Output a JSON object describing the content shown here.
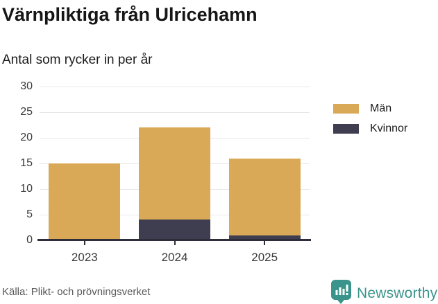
{
  "header": {
    "title": "Värnpliktiga från Ulricehamn",
    "subtitle": "Antal som rycker in per år"
  },
  "chart_data": {
    "type": "bar",
    "stacked": true,
    "title": "Värnpliktiga från Ulricehamn",
    "subtitle": "Antal som rycker in per år",
    "categories": [
      "2023",
      "2024",
      "2025"
    ],
    "series": [
      {
        "name": "Män",
        "color": "#d9a957",
        "values": [
          15,
          18,
          15
        ]
      },
      {
        "name": "Kvinnor",
        "color": "#3f3e51",
        "values": [
          0,
          4,
          1
        ]
      }
    ],
    "stack_order_bottom_to_top": [
      "Kvinnor",
      "Män"
    ],
    "totals": [
      15,
      22,
      16
    ],
    "xlabel": "",
    "ylabel": "",
    "ylim": [
      0,
      30
    ],
    "yticks": [
      0,
      5,
      10,
      15,
      20,
      25,
      30
    ],
    "grid": "horizontal",
    "legend_position": "right"
  },
  "legend": {
    "items": [
      {
        "label": "Män",
        "color": "#d9a957"
      },
      {
        "label": "Kvinnor",
        "color": "#3f3e51"
      }
    ]
  },
  "footer": {
    "source": "Källa: Plikt- och prövningsverket",
    "brand": "Newsworthy",
    "brand_color": "#3a948b",
    "brand_icon": "newsworthy-pin-barchart-icon"
  },
  "colors": {
    "grid": "#e7e7e7",
    "axis": "#2e2d3a",
    "text": "#161616"
  }
}
